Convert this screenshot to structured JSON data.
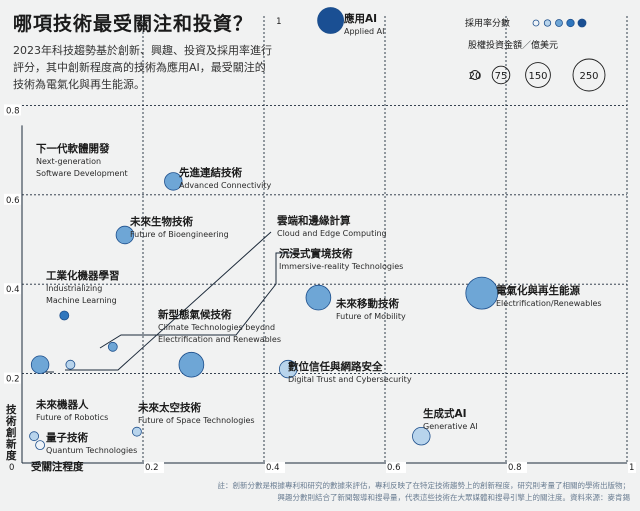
{
  "header": {
    "title": "哪項技術最受關注和投資？",
    "description": "2023年科技趨勢基於創新、興趣、投資及採用率進行評分，其中創新程度高的技術為應用AI，最受關注的技術為電氣化與再生能源。"
  },
  "footnote": [
    "註：創新分數是根據專利和研究的數據來評估，專利反映了在特定技術趨勢上的創新程度，研究則考量了相關的學術出版物；",
    "興趣分數則結合了新聞報導和搜尋量，代表這些技術在大眾媒體和搜尋引擎上的關注度。資料來源：麥肯錫"
  ],
  "legend": {
    "adoption_title": "採用率分數",
    "adoption_levels": [
      "#eef3f8",
      "#b8d4ec",
      "#6ea6d6",
      "#2f76bd",
      "#1a4f93"
    ],
    "investment_title": "股權投資金額／億美元",
    "investment_sizes": [
      20,
      75,
      150,
      250
    ]
  },
  "colors": {
    "background": "#f1f2f2",
    "grid": "#1c2a3a",
    "leader": "#1c2a3a",
    "tick_box": "#ffffff"
  },
  "chart_data": {
    "type": "scatter",
    "xlabel": "受關注程度",
    "ylabel": "技術創新度",
    "xlim": [
      0,
      1
    ],
    "ylim": [
      0,
      1
    ],
    "x_ticks": [
      "0",
      "0.2",
      "0.4",
      "0.6",
      "0.8",
      "1"
    ],
    "y_ticks": [
      "0.2",
      "0.4",
      "0.6",
      "0.8",
      "1"
    ],
    "grid": true,
    "points": [
      {
        "name_zh": "應用AI",
        "name_en": "Applied AI",
        "x": 0.51,
        "y": 0.99,
        "investment": 165,
        "adoption": 5
      },
      {
        "name_zh": "下一代軟體開發",
        "name_en": "Next-generation Software Development",
        "x": 0.03,
        "y": 0.22,
        "investment": 75,
        "adoption": 3
      },
      {
        "name_zh": "先進連結技術",
        "name_en": "Advanced Connectivity",
        "x": 0.25,
        "y": 0.63,
        "investment": 75,
        "adoption": 3
      },
      {
        "name_zh": "未來生物技術",
        "name_en": "Future of Bioengineering",
        "x": 0.17,
        "y": 0.51,
        "investment": 75,
        "adoption": 3
      },
      {
        "name_zh": "工業化機器學習",
        "name_en": "Industrializing Machine Learning",
        "x": 0.07,
        "y": 0.33,
        "investment": 20,
        "adoption": 4
      },
      {
        "name_zh": "雲端和邊緣計算",
        "name_en": "Cloud and Edge Computing",
        "x": 0.15,
        "y": 0.26,
        "investment": 20,
        "adoption": 3
      },
      {
        "name_zh": "沉浸式實境技術",
        "name_en": "Immersive-reality Technologies",
        "x": 0.08,
        "y": 0.22,
        "investment": 20,
        "adoption": 2
      },
      {
        "name_zh": "新型態氣候技術",
        "name_en": "Climate Technologies beyond Electrification and Renewables",
        "x": 0.28,
        "y": 0.22,
        "investment": 150,
        "adoption": 3
      },
      {
        "name_zh": "未來移動技術",
        "name_en": "Future of Mobility",
        "x": 0.49,
        "y": 0.37,
        "investment": 150,
        "adoption": 3
      },
      {
        "name_zh": "電氣化與再生能源",
        "name_en": "Electrification/Renewables",
        "x": 0.76,
        "y": 0.38,
        "investment": 250,
        "adoption": 3
      },
      {
        "name_zh": "數位信任與網路安全",
        "name_en": "Digital Trust and Cybersecurity",
        "x": 0.44,
        "y": 0.21,
        "investment": 75,
        "adoption": 2
      },
      {
        "name_zh": "未來機器人",
        "name_en": "Future of Robotics",
        "x": 0.02,
        "y": 0.06,
        "investment": 20,
        "adoption": 2
      },
      {
        "name_zh": "未來太空技術",
        "name_en": "Future of Space Technologies",
        "x": 0.19,
        "y": 0.07,
        "investment": 20,
        "adoption": 2
      },
      {
        "name_zh": "量子技術",
        "name_en": "Quantum Technologies",
        "x": 0.03,
        "y": 0.04,
        "investment": 20,
        "adoption": 1
      },
      {
        "name_zh": "生成式AI",
        "name_en": "Generative AI",
        "x": 0.66,
        "y": 0.06,
        "investment": 75,
        "adoption": 2
      }
    ]
  }
}
